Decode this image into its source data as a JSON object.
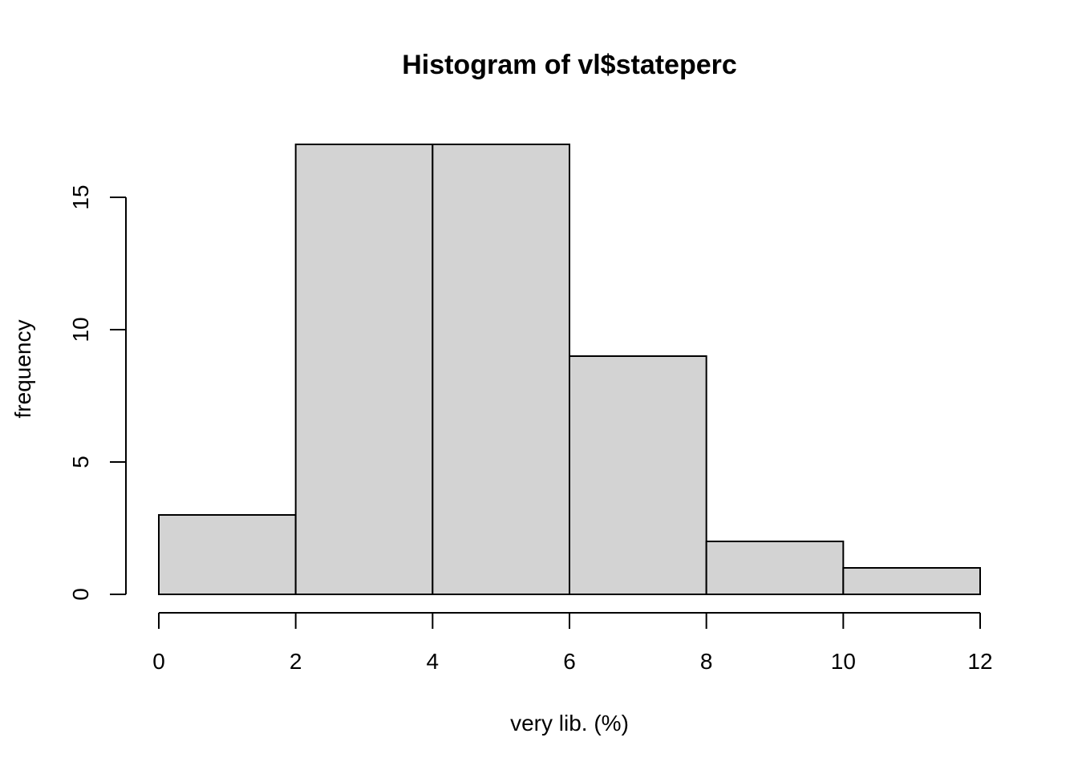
{
  "chart_data": {
    "type": "bar",
    "title": "Histogram of vl$stateperc",
    "xlabel": "very lib. (%)",
    "ylabel": "frequency",
    "bins": [
      {
        "start": 0,
        "end": 2,
        "count": 3
      },
      {
        "start": 2,
        "end": 4,
        "count": 17
      },
      {
        "start": 4,
        "end": 6,
        "count": 17
      },
      {
        "start": 6,
        "end": 8,
        "count": 9
      },
      {
        "start": 8,
        "end": 10,
        "count": 2
      },
      {
        "start": 10,
        "end": 12,
        "count": 1
      }
    ],
    "xticks": [
      0,
      2,
      4,
      6,
      8,
      10,
      12
    ],
    "yticks": [
      0,
      5,
      10,
      15
    ],
    "xlim": [
      0,
      12
    ],
    "ylim": [
      0,
      17
    ],
    "grid": false,
    "colors": {
      "bar_fill": "#d3d3d3",
      "bar_stroke": "#000000",
      "background": "#ffffff"
    }
  }
}
